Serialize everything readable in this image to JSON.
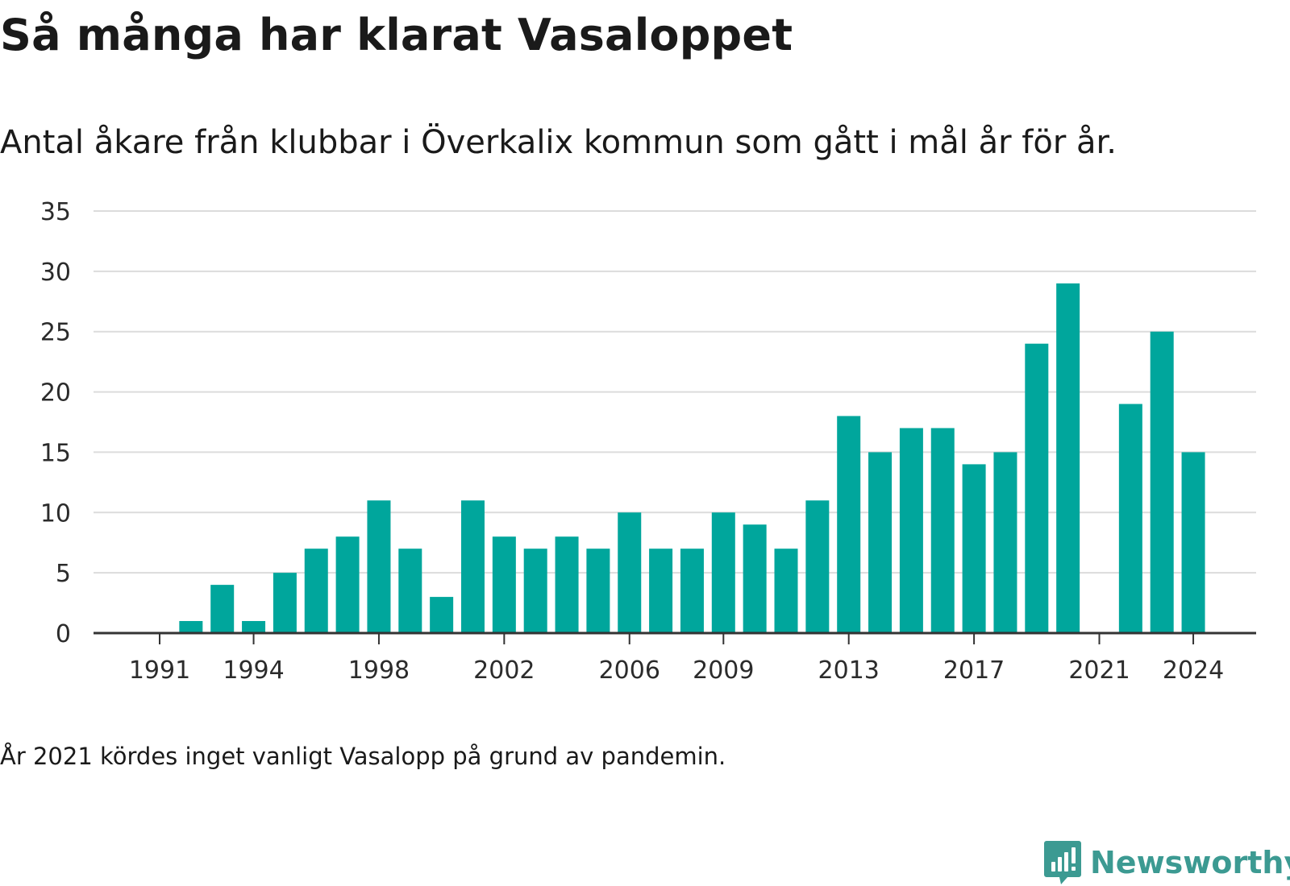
{
  "header": {
    "title": "Så många har klarat Vasaloppet",
    "subtitle": "Antal åkare från klubbar i Överkalix kommun som gått i mål år för år."
  },
  "footnote": "År 2021 kördes inget vanligt Vasalopp på grund av pandemin.",
  "brand": {
    "name": "Newsworthy",
    "icon": "newsworthy-logo-icon",
    "color": "#3c9a92"
  },
  "chart_data": {
    "type": "bar",
    "bar_color": "#00a69c",
    "categories": [
      1991,
      1992,
      1993,
      1994,
      1995,
      1996,
      1997,
      1998,
      1999,
      2000,
      2001,
      2002,
      2003,
      2004,
      2005,
      2006,
      2007,
      2008,
      2009,
      2010,
      2011,
      2012,
      2013,
      2014,
      2015,
      2016,
      2017,
      2018,
      2019,
      2020,
      2021,
      2022,
      2023,
      2024
    ],
    "values": [
      0,
      1,
      4,
      1,
      5,
      7,
      8,
      11,
      7,
      3,
      11,
      8,
      7,
      8,
      7,
      10,
      7,
      7,
      10,
      9,
      7,
      11,
      18,
      15,
      17,
      17,
      14,
      15,
      24,
      29,
      0,
      19,
      25,
      15
    ],
    "xticks": [
      "1991",
      "1994",
      "1998",
      "2002",
      "2006",
      "2009",
      "2013",
      "2017",
      "2021",
      "2024"
    ],
    "yticks": [
      0,
      5,
      10,
      15,
      20,
      25,
      30,
      35
    ],
    "ylim": [
      0,
      35
    ],
    "grid": true
  }
}
